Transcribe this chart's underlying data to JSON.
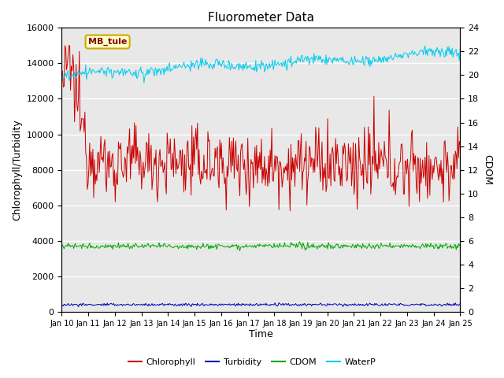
{
  "title": "Fluorometer Data",
  "xlabel": "Time",
  "ylabel_left": "Chlorophyll/Turbidity",
  "ylabel_right": "CDOM",
  "ylim_left": [
    0,
    16000
  ],
  "ylim_right": [
    0,
    24
  ],
  "xlim": [
    0,
    15
  ],
  "x_tick_labels": [
    "Jan 10",
    "Jan 11",
    "Jan 12",
    "Jan 13",
    "Jan 14",
    "Jan 15",
    "Jan 16",
    "Jan 17",
    "Jan 18",
    "Jan 19",
    "Jan 20",
    "Jan 21",
    "Jan 22",
    "Jan 23",
    "Jan 24",
    "Jan 25"
  ],
  "yticks_left": [
    0,
    2000,
    4000,
    6000,
    8000,
    10000,
    12000,
    14000,
    16000
  ],
  "yticks_right": [
    0,
    2,
    4,
    6,
    8,
    10,
    12,
    14,
    16,
    18,
    20,
    22,
    24
  ],
  "station_label": "MB_tule",
  "bg_color": "#e8e8e8",
  "chlorophyll_color": "#cc0000",
  "turbidity_color": "#0000bb",
  "cdom_color": "#00aa00",
  "waterp_color": "#00ccee",
  "legend_entries": [
    "Chlorophyll",
    "Turbidity",
    "CDOM",
    "WaterP"
  ],
  "label_facecolor": "#ffffcc",
  "label_edgecolor": "#ccaa00",
  "label_textcolor": "#880000"
}
